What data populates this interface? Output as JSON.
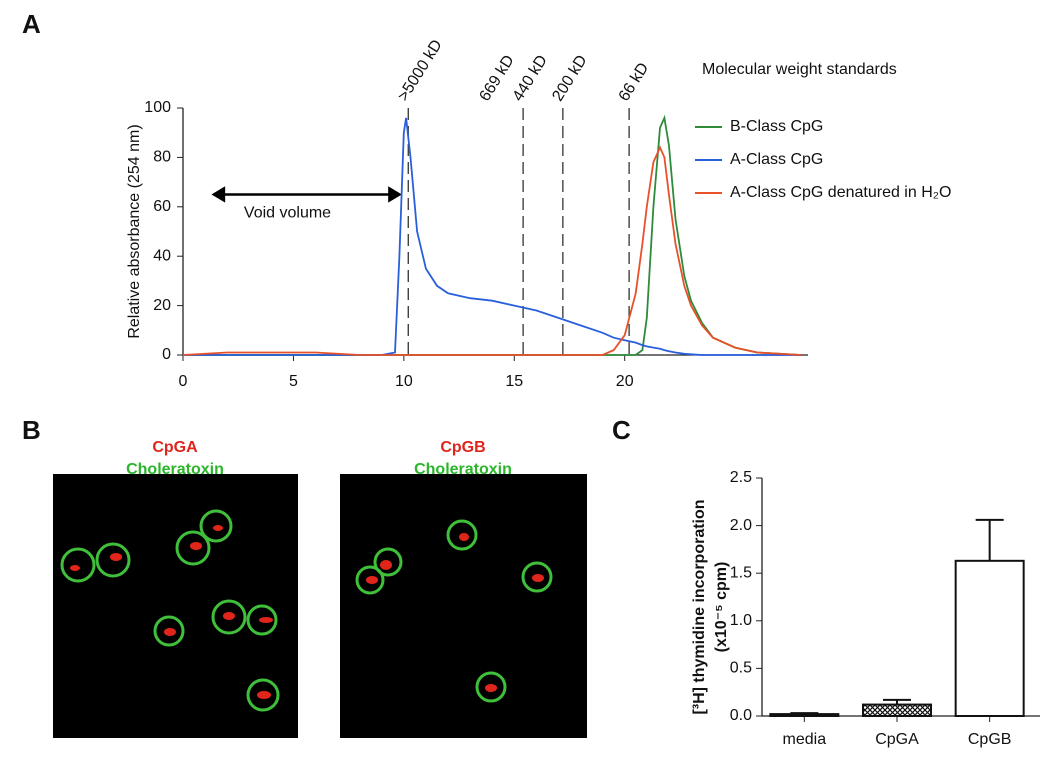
{
  "chart_data": [
    {
      "type": "line",
      "panel": "A",
      "ylabel": "Relative absorbance (254 nm)",
      "x": [
        0,
        2,
        4,
        6,
        8,
        9,
        9.6,
        9.8,
        10,
        10.1,
        10.3,
        10.6,
        11,
        11.5,
        12,
        13,
        14,
        15,
        16,
        17,
        18,
        19,
        19.5,
        20,
        20.5,
        20.8,
        21,
        21.3,
        21.6,
        21.8,
        22,
        22.3,
        22.7,
        23,
        23.5,
        24,
        25,
        26,
        28
      ],
      "series": [
        {
          "name": "B-Class CpG",
          "color": "#2e8b3a",
          "values": [
            0,
            0,
            0,
            0,
            0,
            0,
            0,
            0,
            0,
            0,
            0,
            0,
            0,
            0,
            0,
            0,
            0,
            0,
            0,
            0,
            0,
            0,
            0,
            0,
            0,
            2,
            15,
            60,
            92,
            96,
            85,
            55,
            32,
            22,
            13,
            7,
            3,
            1,
            0
          ]
        },
        {
          "name": "A-Class CpG",
          "color": "#2a5fdc",
          "values": [
            0,
            0,
            0,
            0,
            0,
            0,
            1,
            40,
            90,
            96,
            80,
            50,
            35,
            28,
            25,
            23,
            22,
            20,
            18,
            15,
            12,
            9,
            7,
            6,
            5,
            4,
            3.5,
            3,
            2.5,
            2,
            1.5,
            1,
            0.5,
            0.3,
            0,
            0,
            0,
            0,
            0
          ]
        },
        {
          "name": "A-Class CpG denatured in H₂O",
          "color": "#e8502a",
          "values": [
            0,
            1,
            1,
            1,
            0,
            0,
            0,
            0,
            0,
            0,
            0,
            0,
            0,
            0,
            0,
            0,
            0,
            0,
            0,
            0,
            0,
            0,
            2,
            8,
            25,
            45,
            60,
            78,
            84,
            80,
            65,
            45,
            28,
            20,
            12,
            7,
            3,
            1,
            0
          ]
        }
      ],
      "xlim": [
        0,
        28.3
      ],
      "xticks": [
        0,
        5,
        10,
        15,
        20
      ],
      "ylim": [
        0,
        100
      ],
      "yticks": [
        0,
        20,
        40,
        60,
        80,
        100
      ],
      "markers_title": "Molecular weight standards",
      "markers": [
        {
          "x": 10.2,
          "label": ">5000 kD",
          "line": true
        },
        {
          "x": 13.9,
          "label": "669 kD",
          "line": false
        },
        {
          "x": 15.4,
          "label": "440 kD",
          "line": true
        },
        {
          "x": 17.2,
          "label": "200 kD",
          "line": true
        },
        {
          "x": 20.2,
          "label": "66 kD",
          "line": true
        }
      ],
      "void_volume": {
        "label": "Void volume",
        "x": [
          1.4,
          9.8
        ],
        "y": 65
      }
    },
    {
      "type": "bar",
      "panel": "C",
      "ylabel": [
        "[³H] thymidine incorporation",
        "(x10⁻⁵ cpm)"
      ],
      "categories": [
        "media",
        "CpGA",
        "CpGB"
      ],
      "values": [
        0.02,
        0.12,
        1.63
      ],
      "errors": [
        0.01,
        0.05,
        0.43
      ],
      "patterns": [
        "none",
        "crosshatch",
        "none"
      ],
      "ylim": [
        0,
        2.5
      ],
      "yticks": [
        {
          "value": 0,
          "label": "0.0"
        },
        0.5,
        {
          "value": 1,
          "label": "1.0"
        },
        1.5,
        {
          "value": 2,
          "label": "2.0"
        },
        2.5
      ]
    }
  ],
  "images": {
    "panel": "B",
    "items": [
      {
        "red_label": "CpGA",
        "green_label": "Choleratoxin"
      },
      {
        "red_label": "CpGB",
        "green_label": "Choleratoxin"
      }
    ]
  }
}
